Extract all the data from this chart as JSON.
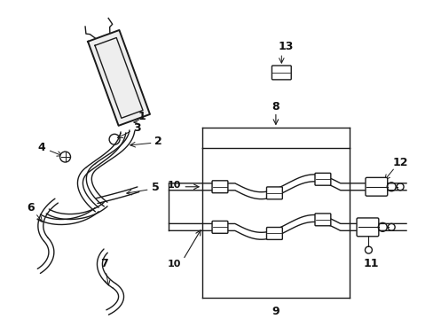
{
  "bg_color": "#ffffff",
  "line_color": "#1a1a1a",
  "text_color": "#111111",
  "figsize": [
    4.89,
    3.6
  ],
  "dpi": 100
}
